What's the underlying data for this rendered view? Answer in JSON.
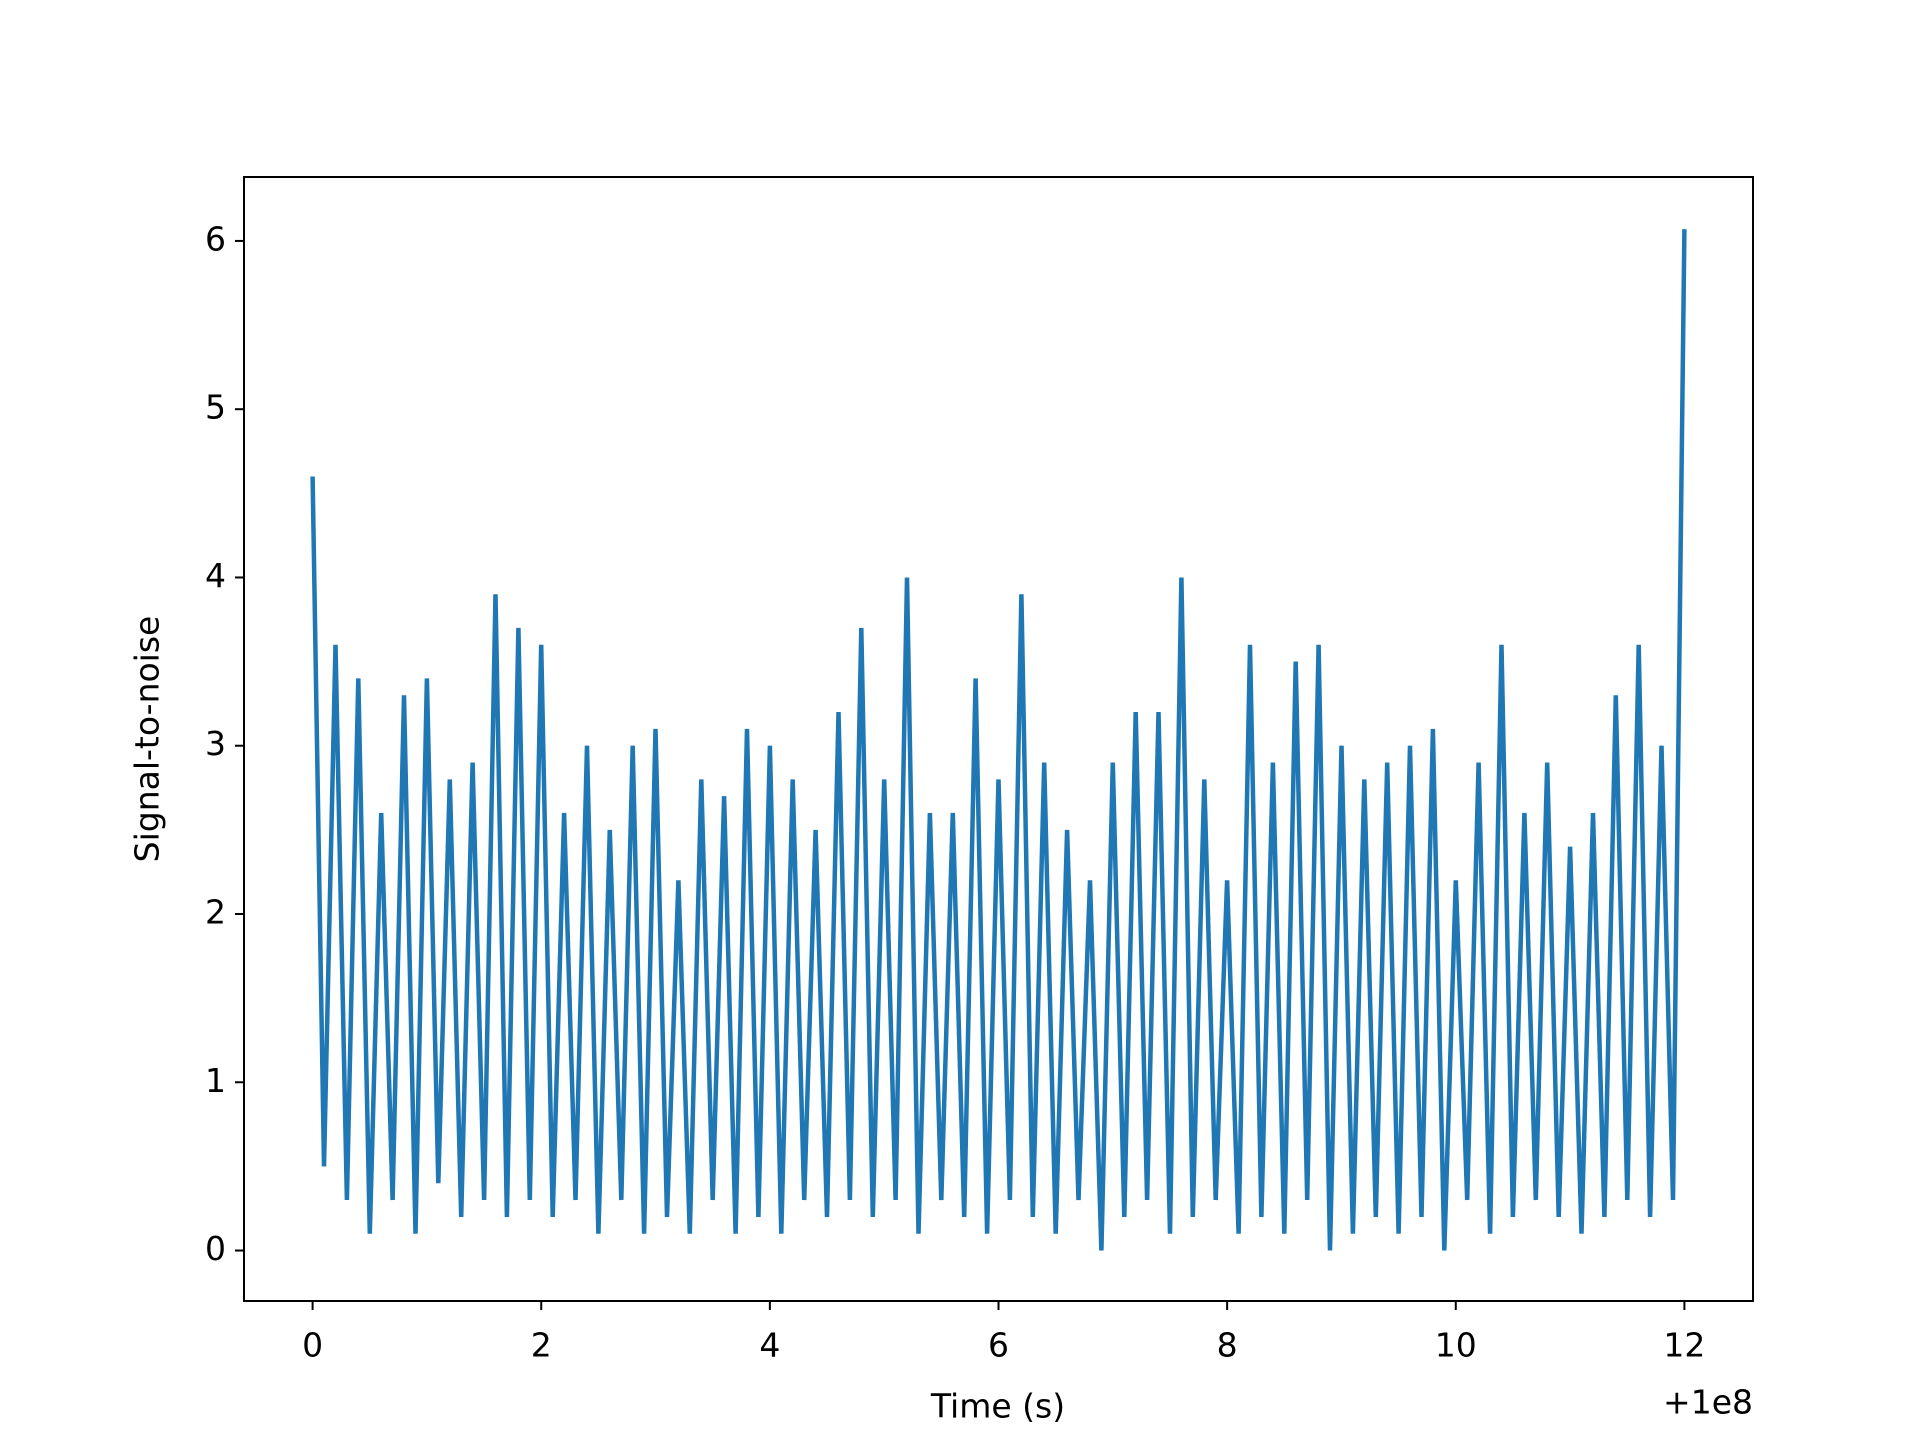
{
  "chart_data": {
    "type": "line",
    "xlabel": "Time (s)",
    "ylabel": "Signal-to-noise",
    "xoffset_label": "+1e8",
    "x": [
      0,
      0.1,
      0.2,
      0.3,
      0.4,
      0.5,
      0.6,
      0.7,
      0.8,
      0.9,
      1,
      1.1,
      1.2,
      1.3,
      1.4,
      1.5,
      1.6,
      1.7,
      1.8,
      1.9,
      2,
      2.1,
      2.2,
      2.3,
      2.4,
      2.5,
      2.6,
      2.7,
      2.8,
      2.9,
      3,
      3.1,
      3.2,
      3.3,
      3.4,
      3.5,
      3.6,
      3.7,
      3.8,
      3.9,
      4,
      4.1,
      4.2,
      4.3,
      4.4,
      4.5,
      4.6,
      4.7,
      4.8,
      4.9,
      5,
      5.1,
      5.2,
      5.3,
      5.4,
      5.5,
      5.6,
      5.7,
      5.8,
      5.9,
      6,
      6.1,
      6.2,
      6.3,
      6.4,
      6.5,
      6.6,
      6.7,
      6.8,
      6.9,
      7,
      7.1,
      7.2,
      7.3,
      7.4,
      7.5,
      7.6,
      7.7,
      7.8,
      7.9,
      8,
      8.1,
      8.2,
      8.3,
      8.4,
      8.5,
      8.6,
      8.7,
      8.8,
      8.9,
      9,
      9.1,
      9.2,
      9.3,
      9.4,
      9.5,
      9.6,
      9.7,
      9.8,
      9.9,
      10,
      10.1,
      10.2,
      10.3,
      10.4,
      10.5,
      10.6,
      10.7,
      10.8,
      10.9,
      11,
      11.1,
      11.2,
      11.3,
      11.4,
      11.5,
      11.6,
      11.7,
      11.8,
      11.9,
      12
    ],
    "series": [
      {
        "color": "#1f77b4",
        "values": [
          4.6,
          0.5,
          3.6,
          0.3,
          3.4,
          0.1,
          2.6,
          0.3,
          3.3,
          0.1,
          3.4,
          0.4,
          2.8,
          0.2,
          2.9,
          0.3,
          3.9,
          0.2,
          3.7,
          0.3,
          3.6,
          0.2,
          2.6,
          0.3,
          3.0,
          0.1,
          2.5,
          0.3,
          3.0,
          0.1,
          3.1,
          0.2,
          2.2,
          0.1,
          2.8,
          0.3,
          2.7,
          0.1,
          3.1,
          0.2,
          3.0,
          0.1,
          2.8,
          0.3,
          2.5,
          0.2,
          3.2,
          0.3,
          3.7,
          0.2,
          2.8,
          0.3,
          4.0,
          0.1,
          2.6,
          0.3,
          2.6,
          0.2,
          3.4,
          0.1,
          2.8,
          0.3,
          3.9,
          0.2,
          2.9,
          0.1,
          2.5,
          0.3,
          2.2,
          0.0,
          2.9,
          0.2,
          3.2,
          0.3,
          3.2,
          0.1,
          4.0,
          0.2,
          2.8,
          0.3,
          2.2,
          0.1,
          3.6,
          0.2,
          2.9,
          0.1,
          3.5,
          0.3,
          3.6,
          0.0,
          3.0,
          0.1,
          2.8,
          0.2,
          2.9,
          0.1,
          3.0,
          0.2,
          3.1,
          0.0,
          2.2,
          0.3,
          2.9,
          0.1,
          3.6,
          0.2,
          2.6,
          0.3,
          2.9,
          0.2,
          2.4,
          0.1,
          2.6,
          0.2,
          3.3,
          0.3,
          3.6,
          0.2,
          3.0,
          0.3,
          6.07
        ]
      }
    ],
    "xlim": [
      -0.6,
      12.6
    ],
    "xticks": [
      0,
      2,
      4,
      6,
      8,
      10,
      12
    ],
    "ylim": [
      -0.3,
      6.38
    ],
    "yticks": [
      0,
      1,
      2,
      3,
      4,
      5,
      6
    ],
    "grid": false
  }
}
